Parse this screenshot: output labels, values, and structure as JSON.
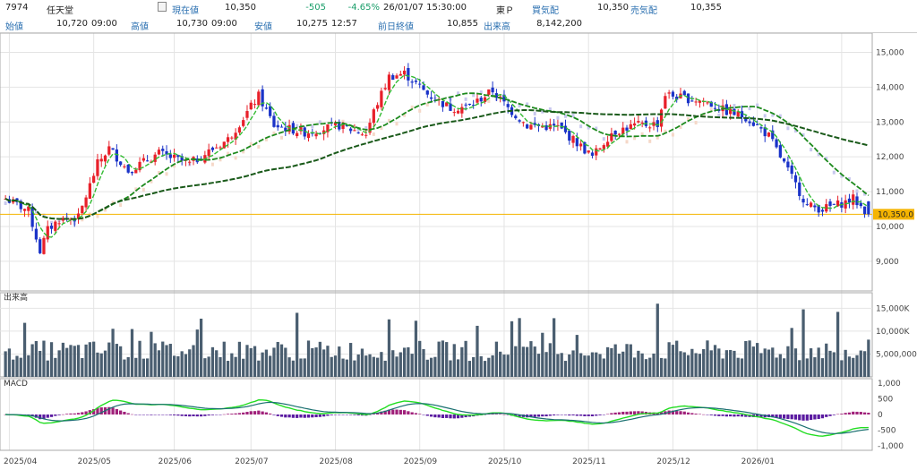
{
  "header": {
    "code": "7974",
    "name": "任天堂",
    "current_label": "現在値",
    "current": "10,350",
    "change": "-505",
    "change_pct": "-4.65%",
    "datetime": "26/01/07 15:30:00",
    "market": "東Ｐ",
    "bid_label": "買気配",
    "bid": "10,350",
    "ask_label": "売気配",
    "ask": "10,355",
    "open_label": "始値",
    "open": "10,720",
    "open_time": "09:00",
    "high_label": "高値",
    "high": "10,730",
    "high_time": "09:00",
    "low_label": "安値",
    "low": "10,275",
    "low_time": "12:57",
    "prev_close_label": "前日終値",
    "prev_close": "10,855",
    "volume_label": "出来高",
    "volume": "8,142,200"
  },
  "chart_data": [
    {
      "type": "candlestick",
      "panel": "price",
      "ylim": [
        8200,
        15500
      ],
      "y_ticks": [
        "15,000",
        "14,000",
        "13,000",
        "12,000",
        "11,000",
        "10,000",
        "9,000"
      ],
      "y_tick_values": [
        15000,
        14000,
        13000,
        12000,
        11000,
        10000,
        9000
      ],
      "current_price_label": "10,350.0",
      "current_price": 10350,
      "x_ticks": [
        "2025/04",
        "2025/05",
        "2025/06",
        "2025/07",
        "2025/08",
        "2025/09",
        "2025/10",
        "2025/11",
        "2025/12",
        "2026/01"
      ],
      "colors": {
        "up": "#e8202a",
        "down": "#1a33c8",
        "ma_short": "#33bb33",
        "ma_mid": "#1d8a1d",
        "ma_long": "#1a5a1a",
        "cloud_up": "#f5d8c8",
        "cloud_down": "#c8c8ee",
        "price_line": "#f5b400"
      }
    },
    {
      "type": "bar",
      "panel": "volume",
      "title": "出来高",
      "ylim": [
        0,
        18000000
      ],
      "y_ticks": [
        "15,000K",
        "10,000K",
        "5,000,000"
      ],
      "y_tick_values": [
        15000000,
        10000000,
        5000000
      ],
      "color": "#4a5e70"
    },
    {
      "type": "line",
      "panel": "macd",
      "title": "MACD",
      "ylim": [
        -1150,
        1150
      ],
      "y_ticks": [
        "1,000",
        "500",
        "0",
        "-500",
        "-1,000"
      ],
      "y_tick_values": [
        1000,
        500,
        0,
        -500,
        -1000
      ],
      "colors": {
        "macd": "#22dd22",
        "signal": "#1a7070",
        "hist_pos": "#a0207a",
        "hist_neg": "#5a1aa0"
      }
    }
  ]
}
